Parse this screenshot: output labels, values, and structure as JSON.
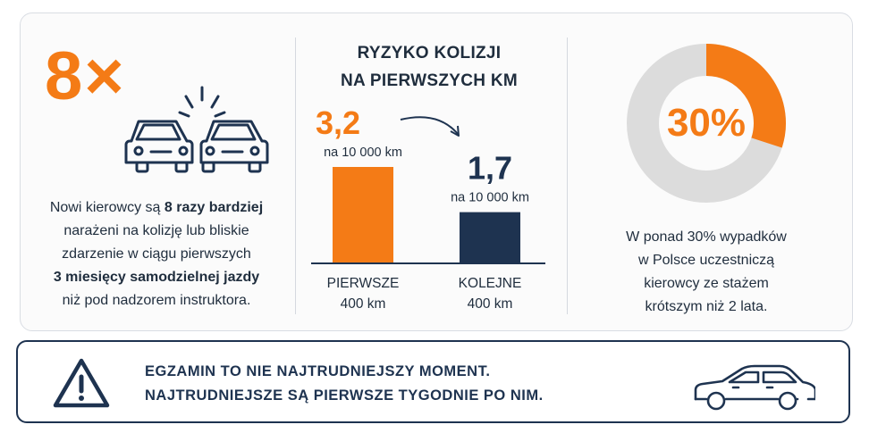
{
  "colors": {
    "orange": "#f47b16",
    "navy": "#1e3350",
    "grey": "#dcdcdc"
  },
  "left": {
    "multiplier": "8×",
    "icon": "car-crash-icon",
    "text_lines": [
      [
        {
          "t": "Nowi kierowcy są ",
          "b": false
        },
        {
          "t": "8 razy bardziej",
          "b": true
        }
      ],
      [
        {
          "t": "narażeni na kolizję lub bliskie",
          "b": false
        }
      ],
      [
        {
          "t": "zdarzenie w ciągu pierwszych",
          "b": false
        }
      ],
      [
        {
          "t": "3 miesięcy samodzielnej jazdy",
          "b": true
        }
      ],
      [
        {
          "t": "niż pod nadzorem instruktora.",
          "b": false
        }
      ]
    ]
  },
  "middle": {
    "title_line1": "RYZYKO KOLIZJI",
    "title_line2": "NA PIERWSZYCH KM",
    "chart_data": {
      "type": "bar",
      "categories": [
        "PIERWSZE 400 km",
        "KOLEJNE 400 km"
      ],
      "category_lines": [
        [
          "PIERWSZE",
          "400 km"
        ],
        [
          "KOLEJNE",
          "400 km"
        ]
      ],
      "values": [
        3.2,
        1.7
      ],
      "value_labels": [
        "3,2",
        "1,7"
      ],
      "unit_label": "na 10 000 km",
      "bar_colors": [
        "#f47b16",
        "#1e3350"
      ],
      "ylim": [
        0,
        4.0
      ],
      "grid": false
    }
  },
  "right": {
    "percent_label": "30%",
    "percent_value": 30,
    "text_lines": [
      "W ponad 30% wypadków",
      "w Polsce uczestniczą",
      "kierowcy ze stażem",
      "krótszym niż 2 lata."
    ]
  },
  "bottom": {
    "line1": "EGZAMIN TO NIE NAJTRUDNIEJSZY MOMENT.",
    "line2": "NAJTRUDNIEJSZE SĄ PIERWSZE TYGODNIE PO NIM.",
    "warning_icon": "warning-triangle-icon",
    "car_icon": "car-icon"
  }
}
